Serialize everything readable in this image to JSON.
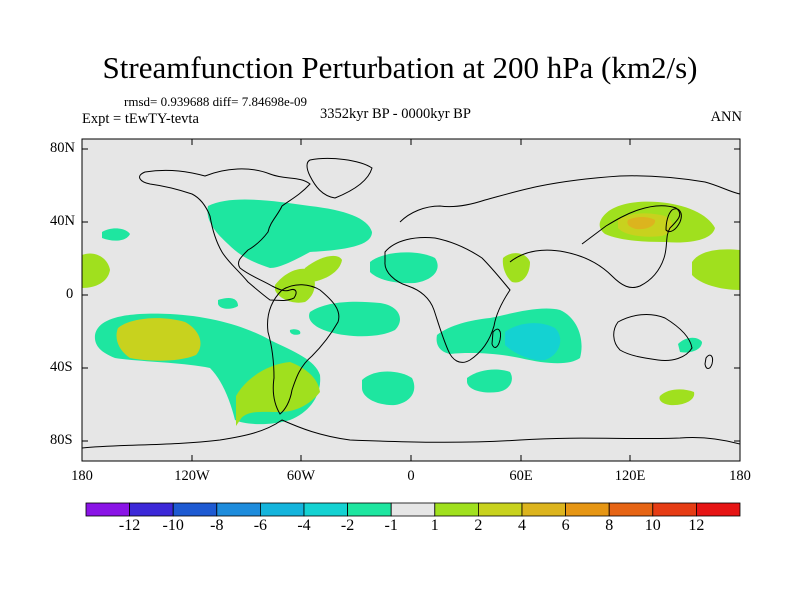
{
  "header": {
    "title": "Streamfunction Perturbation at 200 hPa (km2/s)",
    "stats": "rmsd= 0.939688 diff= 7.84698e-09",
    "left": "Expt = tEwTY-tevta",
    "center": "3352kyr BP - 0000kyr BP",
    "right": "ANN"
  },
  "axes": {
    "lat_labels": [
      "80N",
      "40N",
      "0",
      "40S",
      "80S"
    ],
    "lon_labels": [
      "180",
      "120W",
      "60W",
      "0",
      "60E",
      "120E",
      "180"
    ]
  },
  "colorbar": {
    "colors": [
      "#8a14e6",
      "#3c28d8",
      "#1e5ad2",
      "#1e8cdc",
      "#14b4dc",
      "#14d2d2",
      "#1ee6a0",
      "#e6e6e6",
      "#a0e01e",
      "#c8d21e",
      "#dcb41e",
      "#e69614",
      "#e66414",
      "#e63c14",
      "#e61414"
    ],
    "labels": [
      "-12",
      "-10",
      "-8",
      "-6",
      "-4",
      "-2",
      "-1",
      "1",
      "2",
      "4",
      "6",
      "8",
      "10",
      "12"
    ]
  },
  "colors": {
    "land_background": "#e6e6e6",
    "level_2": "#1ee6a0",
    "level_4": "#14d2d2",
    "level_pos2": "#a0e01e",
    "level_pos4": "#c8d21e",
    "level_pos6": "#dcb41e"
  }
}
